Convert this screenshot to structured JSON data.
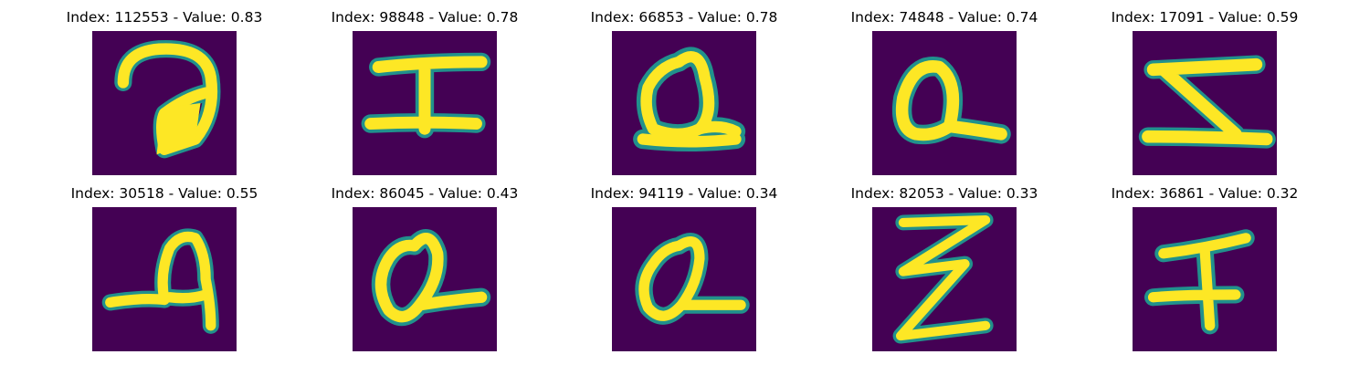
{
  "colors": {
    "background": "#440154",
    "mid": "#21918c",
    "foreground": "#fde725"
  },
  "images": [
    {
      "title": "Index: 112553 - Value: 0.83",
      "glyph": "handwritten-question-mark-like"
    },
    {
      "title": "Index: 98848 - Value: 0.78",
      "glyph": "handwritten-I-like"
    },
    {
      "title": "Index: 66853 - Value: 0.78",
      "glyph": "handwritten-a-like"
    },
    {
      "title": "Index: 74848 - Value: 0.74",
      "glyph": "handwritten-a-like"
    },
    {
      "title": "Index: 17091 - Value: 0.59",
      "glyph": "handwritten-Z-like"
    },
    {
      "title": "Index: 30518 - Value: 0.55",
      "glyph": "handwritten-a-like"
    },
    {
      "title": "Index: 86045 - Value: 0.43",
      "glyph": "handwritten-a-like"
    },
    {
      "title": "Index: 94119 - Value: 0.34",
      "glyph": "handwritten-a-like"
    },
    {
      "title": "Index: 82053 - Value: 0.33",
      "glyph": "handwritten-Z-like"
    },
    {
      "title": "Index: 36861 - Value: 0.32",
      "glyph": "handwritten-F-like"
    }
  ]
}
